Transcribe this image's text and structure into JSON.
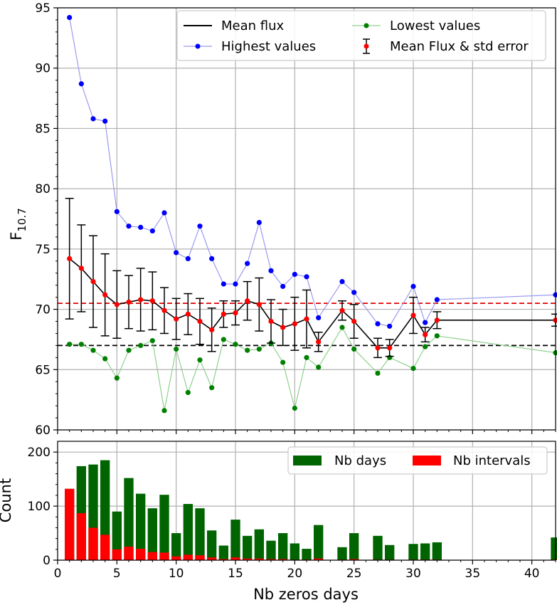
{
  "chart_data": [
    {
      "type": "line",
      "ylabel_main": "F",
      "ylabel_sub": "10.7",
      "xlim": [
        0,
        42
      ],
      "ylim": [
        60,
        95
      ],
      "xticks": [
        0,
        5,
        10,
        15,
        20,
        25,
        30,
        35,
        40
      ],
      "yticks": [
        60,
        65,
        70,
        75,
        80,
        85,
        90,
        95
      ],
      "grid": true,
      "legend_position": "top-right",
      "legend": {
        "mean": "Mean flux",
        "highest": "Highest values",
        "lowest": "Lowest values",
        "errorbar": "Mean Flux & std error"
      },
      "hlines": {
        "red": 70.5,
        "black": 67.0
      },
      "colors": {
        "highest": "#0000ff",
        "highest_line": "#9a9af0",
        "lowest": "#008000",
        "lowest_line": "#8fd08f",
        "mean": "#000000",
        "mean_points": "#ff0000",
        "hline_red": "#e00000",
        "hline_black": "#000000"
      },
      "highest": {
        "x": [
          1,
          2,
          3,
          4,
          5,
          6,
          7,
          8,
          9,
          10,
          11,
          12,
          13,
          14,
          15,
          16,
          17,
          18,
          19,
          20,
          21,
          22,
          24,
          25,
          27,
          28,
          30,
          31,
          32,
          42
        ],
        "y": [
          94.2,
          88.7,
          85.8,
          85.6,
          78.1,
          76.9,
          76.8,
          76.5,
          78.0,
          74.7,
          74.2,
          76.9,
          74.2,
          72.1,
          72.1,
          73.8,
          77.2,
          73.2,
          71.9,
          72.9,
          72.7,
          69.3,
          72.3,
          71.4,
          68.8,
          68.6,
          71.9,
          68.9,
          70.8,
          71.2
        ]
      },
      "lowest": {
        "x": [
          1,
          2,
          3,
          4,
          5,
          6,
          7,
          8,
          9,
          10,
          11,
          12,
          13,
          14,
          15,
          16,
          17,
          18,
          19,
          20,
          21,
          22,
          24,
          25,
          27,
          28,
          30,
          31,
          32,
          42
        ],
        "y": [
          67.1,
          67.1,
          66.6,
          65.9,
          64.3,
          66.6,
          67.0,
          67.4,
          61.6,
          66.7,
          63.1,
          65.8,
          63.5,
          67.5,
          67.1,
          66.6,
          66.7,
          67.2,
          65.6,
          61.8,
          66.0,
          65.2,
          68.5,
          66.7,
          64.7,
          66.0,
          65.1,
          66.9,
          67.8,
          66.4
        ]
      },
      "mean": {
        "x": [
          1,
          2,
          3,
          4,
          5,
          6,
          7,
          8,
          9,
          10,
          11,
          12,
          13,
          14,
          15,
          16,
          17,
          18,
          19,
          20,
          21,
          22,
          24,
          25,
          27,
          28,
          30,
          31,
          32,
          42
        ],
        "y": [
          74.2,
          73.4,
          72.3,
          71.2,
          70.4,
          70.6,
          70.8,
          70.7,
          69.9,
          69.2,
          69.6,
          69.0,
          68.3,
          69.6,
          69.7,
          70.7,
          70.4,
          69.0,
          68.5,
          68.8,
          69.2,
          67.3,
          69.9,
          69.0,
          66.8,
          66.8,
          69.5,
          67.9,
          69.1,
          69.1
        ],
        "err": [
          5.0,
          3.6,
          3.8,
          3.4,
          2.8,
          2.2,
          2.6,
          2.4,
          1.9,
          1.7,
          1.7,
          1.9,
          1.8,
          1.1,
          1.0,
          1.6,
          2.2,
          1.8,
          1.5,
          2.2,
          2.4,
          0.8,
          0.8,
          1.4,
          0.8,
          0.7,
          1.5,
          0.6,
          0.7,
          0.5
        ]
      }
    },
    {
      "type": "bar",
      "xlabel": "Nb zeros days",
      "ylabel": "Count",
      "xlim": [
        0,
        42
      ],
      "ylim": [
        0,
        220
      ],
      "xticks": [
        0,
        5,
        10,
        15,
        20,
        25,
        30,
        35,
        40
      ],
      "yticks": [
        0,
        100,
        200
      ],
      "grid": true,
      "legend_position": "top-right",
      "colors": {
        "days": "#006400",
        "intervals": "#ff0000"
      },
      "series": [
        {
          "name": "Nb days",
          "x": [
            1,
            2,
            3,
            4,
            5,
            6,
            7,
            8,
            9,
            10,
            11,
            12,
            13,
            14,
            15,
            16,
            17,
            18,
            19,
            20,
            21,
            22,
            24,
            25,
            27,
            28,
            30,
            31,
            32,
            42
          ],
          "values": [
            132,
            174,
            177,
            185,
            90,
            152,
            123,
            96,
            121,
            50,
            104,
            96,
            55,
            27,
            75,
            45,
            57,
            36,
            50,
            31,
            21,
            65,
            24,
            50,
            45,
            28,
            30,
            31,
            33,
            42
          ]
        },
        {
          "name": "Nb intervals",
          "x": [
            1,
            2,
            3,
            4,
            5,
            6,
            7,
            8,
            9,
            10,
            11,
            12,
            13,
            14,
            15,
            16,
            17,
            18,
            19,
            20,
            21,
            22,
            24,
            25,
            27,
            28,
            30,
            31,
            32,
            42
          ],
          "values": [
            132,
            87,
            60,
            47,
            20,
            25,
            21,
            15,
            14,
            7,
            10,
            9,
            5,
            2,
            5,
            3,
            3,
            2,
            2,
            1,
            1,
            3,
            1,
            2,
            1,
            1,
            1,
            1,
            1,
            1
          ]
        }
      ]
    }
  ]
}
